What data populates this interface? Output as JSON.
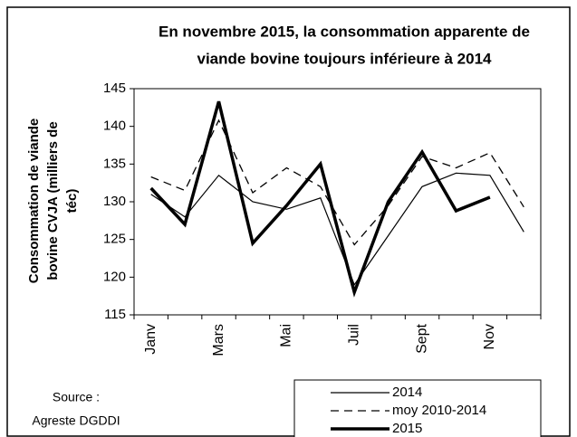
{
  "chart_data": {
    "type": "line",
    "title": [
      "En novembre 2015,  la consommation apparente de",
      "viande bovine toujours inférieure à 2014"
    ],
    "y_label": [
      "Consommation de viande",
      "bovine CVJA  (milliers de",
      "téc)"
    ],
    "source": [
      "Source :",
      "Agreste DGDDI"
    ],
    "categories": [
      "Janv",
      null,
      "Mars",
      null,
      "Mai",
      null,
      "Juil",
      null,
      "Sept",
      null,
      "Nov",
      null
    ],
    "series": [
      {
        "name": "2014",
        "color": "#000000",
        "dashed": false,
        "width": 1.2,
        "values": [
          131,
          128,
          133.5,
          130,
          129,
          130.5,
          119,
          125.5,
          132,
          133.8,
          133.5,
          126
        ]
      },
      {
        "name": "moy 2010-2014",
        "color": "#000000",
        "dashed": true,
        "width": 1.3,
        "values": [
          133.3,
          131.5,
          140.8,
          131.2,
          134.5,
          132,
          124.3,
          129.5,
          136,
          134.5,
          136.5,
          129.3
        ]
      },
      {
        "name": "2015",
        "color": "#000000",
        "dashed": false,
        "width": 3.5,
        "values": [
          131.8,
          127,
          143.3,
          124.5,
          129.5,
          135,
          118,
          130,
          136.6,
          128.8,
          130.6,
          null
        ]
      }
    ],
    "ylim": [
      115,
      145
    ],
    "yticks": [
      115,
      120,
      125,
      130,
      135,
      140,
      145
    ],
    "grid": false
  }
}
